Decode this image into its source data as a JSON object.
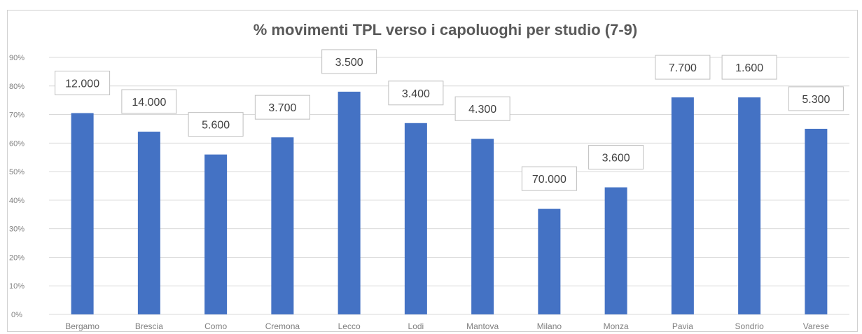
{
  "chart_data": {
    "type": "bar",
    "title": "% movimenti TPL verso i capoluoghi per studio (7-9)",
    "xlabel": "",
    "ylabel": "",
    "ylim": [
      0,
      0.9
    ],
    "y_ticks": [
      "0%",
      "10%",
      "20%",
      "30%",
      "40%",
      "50%",
      "60%",
      "70%",
      "80%",
      "90%"
    ],
    "grid": true,
    "legend": "none",
    "bar_color": "#4472c4",
    "categories": [
      "Bergamo",
      "Brescia",
      "Como",
      "Cremona",
      "Lecco",
      "Lodi",
      "Mantova",
      "Milano",
      "Monza",
      "Pavia",
      "Sondrio",
      "Varese"
    ],
    "values": [
      0.705,
      0.64,
      0.56,
      0.62,
      0.78,
      0.67,
      0.615,
      0.37,
      0.445,
      0.76,
      0.76,
      0.65
    ],
    "data_labels": [
      "12.000",
      "14.000",
      "5.600",
      "3.700",
      "3.500",
      "3.400",
      "4.300",
      "70.000",
      "3.600",
      "7.700",
      "1.600",
      "5.300"
    ]
  }
}
